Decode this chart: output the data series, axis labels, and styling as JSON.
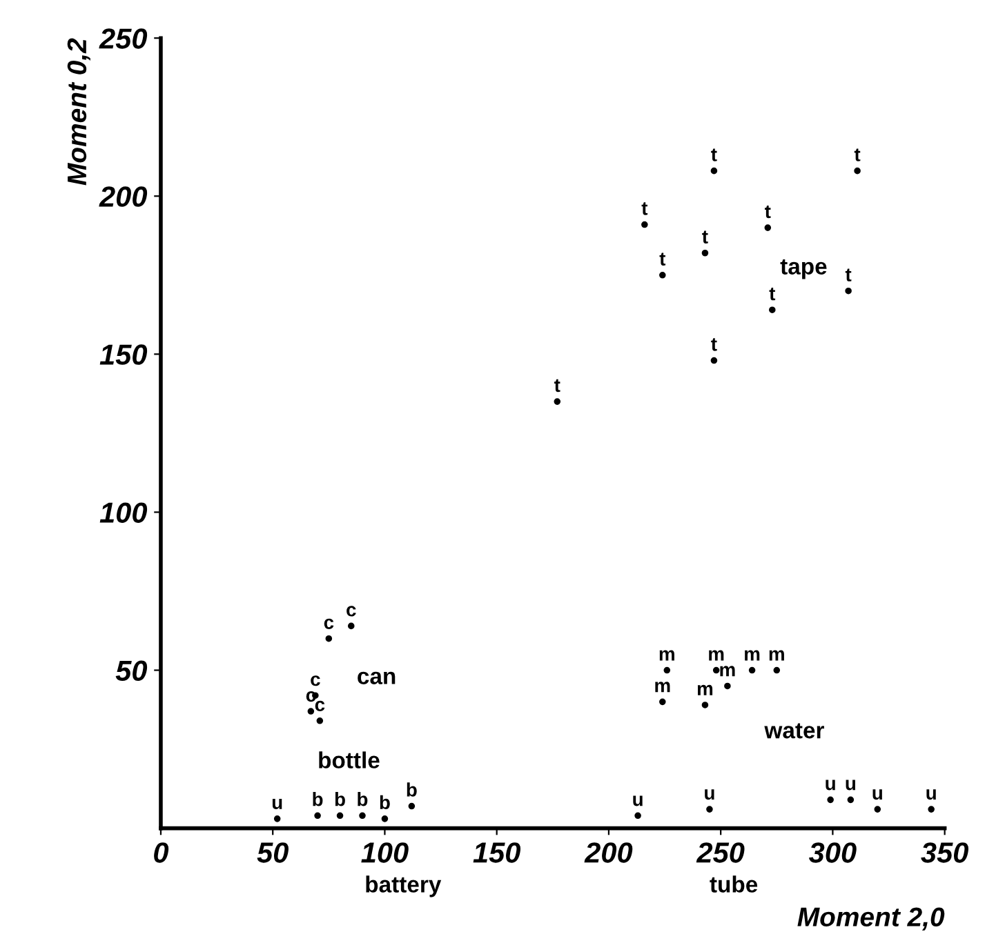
{
  "chart_data": {
    "type": "scatter",
    "xlabel": "Moment 2,0",
    "ylabel": "Moment 0,2",
    "xlim": [
      0,
      350
    ],
    "ylim": [
      0,
      250
    ],
    "xticks": [
      0,
      50,
      100,
      150,
      200,
      250,
      300,
      350
    ],
    "yticks": [
      50,
      100,
      150,
      200,
      250
    ],
    "grid": false,
    "legend": false,
    "series": [
      {
        "name": "t",
        "color": "#000000",
        "x": [
          247,
          311,
          216,
          271,
          243,
          224,
          307,
          273,
          247,
          177
        ],
        "values": [
          208,
          208,
          191,
          190,
          182,
          175,
          170,
          164,
          148,
          135
        ]
      },
      {
        "name": "c",
        "color": "#000000",
        "x": [
          75,
          85,
          69,
          67,
          71
        ],
        "values": [
          60,
          64,
          42,
          37,
          34
        ]
      },
      {
        "name": "m",
        "color": "#000000",
        "x": [
          226,
          248,
          264,
          275,
          224,
          243,
          253
        ],
        "values": [
          50,
          50,
          50,
          50,
          40,
          39,
          45
        ]
      },
      {
        "name": "b",
        "color": "#000000",
        "x": [
          112,
          70,
          80,
          90,
          100
        ],
        "values": [
          7,
          4,
          4,
          4,
          3
        ]
      },
      {
        "name": "u",
        "color": "#000000",
        "x": [
          52,
          213,
          245,
          299,
          308,
          320,
          344
        ],
        "values": [
          3,
          4,
          6,
          9,
          9,
          6,
          6
        ]
      }
    ],
    "annotations": [
      "tape",
      "can",
      "water",
      "bottle",
      "battery",
      "tube"
    ]
  }
}
